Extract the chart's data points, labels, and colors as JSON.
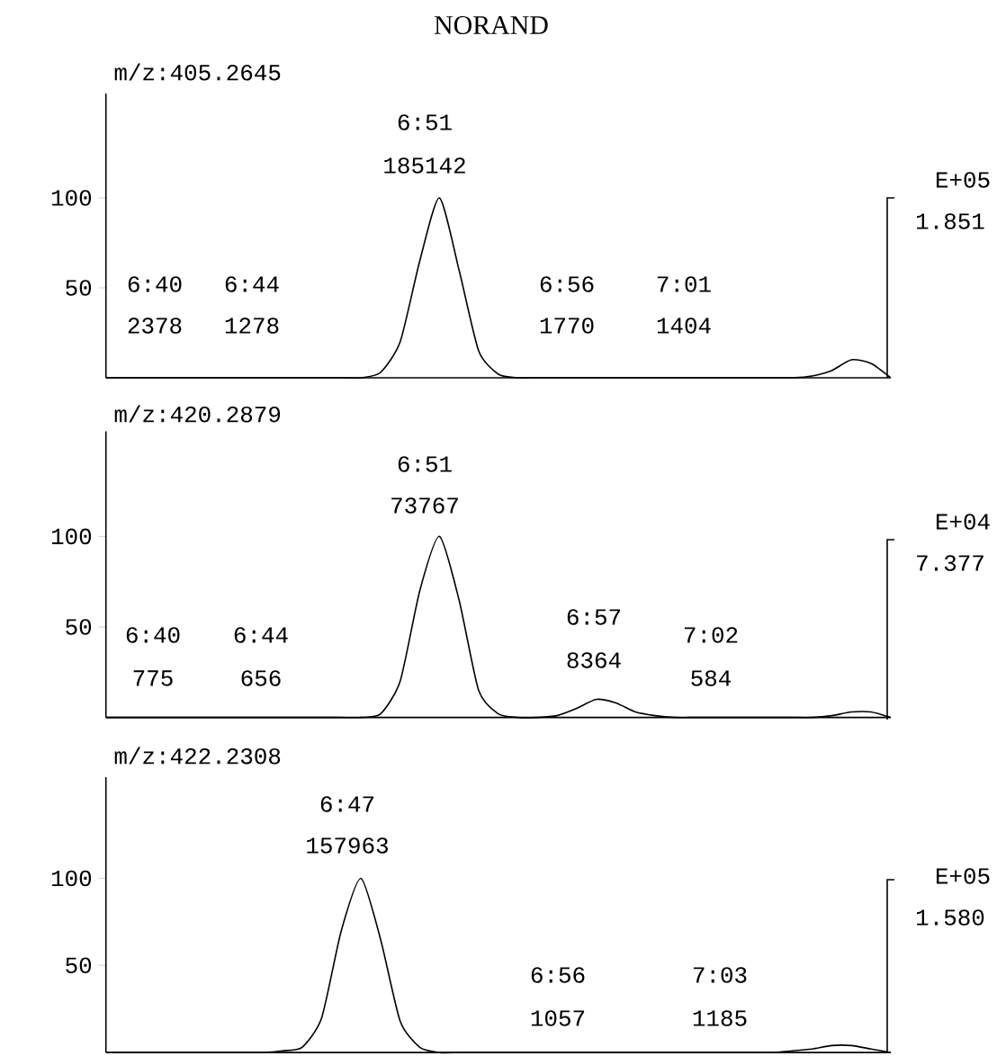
{
  "chart_data": [
    {
      "type": "line",
      "title": "NORAND",
      "subtitle": "m/z:405.2645",
      "categories": [
        null,
        null,
        null,
        null,
        null,
        null,
        null,
        null,
        null,
        null,
        null,
        null,
        null,
        null,
        null,
        null,
        null,
        null,
        null,
        null,
        null,
        null,
        null,
        null,
        null,
        null,
        null,
        null,
        null,
        null,
        null,
        null,
        null,
        null,
        null,
        null,
        null,
        null,
        null,
        null,
        null
      ],
      "color": "#000000",
      "ylim": [
        0,
        158
      ],
      "yticks": [
        50,
        100
      ],
      "values": [
        0,
        0,
        0,
        0,
        0,
        0,
        0,
        0,
        0,
        0,
        0,
        0,
        0,
        0,
        3,
        20,
        65,
        100,
        60,
        15,
        2,
        0,
        0,
        0,
        0,
        0,
        0,
        0,
        0,
        0,
        0,
        0,
        0,
        0,
        0,
        0,
        1,
        4,
        10,
        8,
        0
      ],
      "annotations": [
        "6:51",
        "185142",
        "6:40",
        "2378",
        "6:44",
        "1278",
        "6:56",
        "1770",
        "7:01",
        "1404",
        "E+05",
        "1.851"
      ]
    },
    {
      "type": "line",
      "title": "m/z:420.2879",
      "categories": [
        null,
        null,
        null,
        null,
        null,
        null,
        null,
        null,
        null,
        null,
        null,
        null,
        null,
        null,
        null,
        null,
        null,
        null,
        null,
        null,
        null,
        null,
        null,
        null,
        null,
        null,
        null,
        null,
        null,
        null,
        null,
        null,
        null,
        null,
        null,
        null,
        null,
        null,
        null,
        null,
        null
      ],
      "color": "#000000",
      "ylim": [
        0,
        158
      ],
      "yticks": [
        50,
        100
      ],
      "values": [
        0,
        0,
        0,
        0,
        0,
        0,
        0,
        0,
        0,
        0,
        0,
        0,
        0,
        0,
        2,
        20,
        70,
        100,
        65,
        15,
        2,
        0,
        0,
        1,
        5,
        10,
        8,
        3,
        1,
        0,
        0,
        0,
        0,
        0,
        0,
        0,
        0,
        1,
        3,
        3,
        0
      ],
      "annotations": [
        "6:51",
        "73767",
        "6:40",
        "775",
        "6:44",
        "656",
        "6:57",
        "8364",
        "7:02",
        "584",
        "E+04",
        "7.377"
      ]
    },
    {
      "type": "line",
      "title": "m/z:422.2308",
      "categories": [
        null,
        null,
        null,
        null,
        null,
        null,
        null,
        null,
        null,
        null,
        null,
        null,
        null,
        null,
        null,
        null,
        null,
        null,
        null,
        null,
        null,
        null,
        null,
        null,
        null,
        null,
        null,
        null,
        null,
        null,
        null,
        null,
        null,
        null,
        null,
        null,
        null,
        null,
        null,
        null,
        null
      ],
      "color": "#000000",
      "ylim": [
        0,
        158
      ],
      "yticks": [
        50,
        100
      ],
      "values": [
        0,
        0,
        0,
        0,
        0,
        0,
        0,
        0,
        0,
        1,
        3,
        20,
        70,
        100,
        65,
        18,
        3,
        0,
        0,
        0,
        0,
        0,
        0,
        0,
        0,
        0,
        0,
        0,
        0,
        0,
        0,
        0,
        0,
        0,
        0,
        1,
        2,
        4,
        4,
        2,
        0
      ],
      "annotations": [
        "6:47",
        "157963",
        "6:56",
        "1057",
        "7:03",
        "1185",
        "E+05",
        "1.580"
      ]
    }
  ]
}
